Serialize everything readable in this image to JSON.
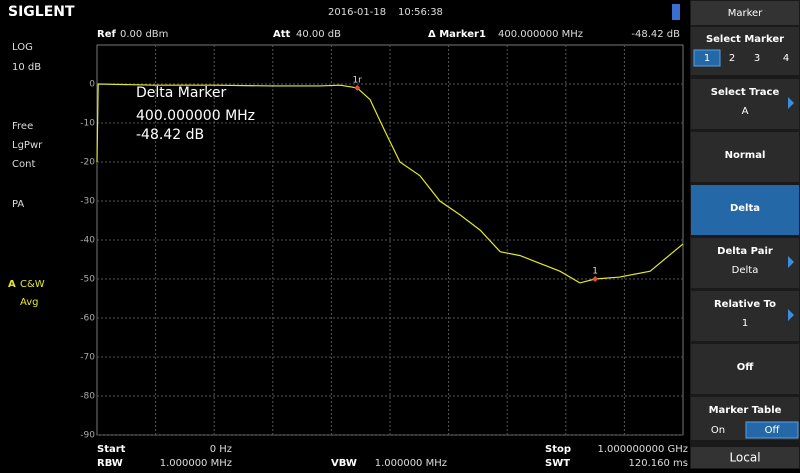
{
  "header": {
    "brand": "SIGLENT",
    "date": "2016-01-18",
    "time": "10:56:38"
  },
  "info_top": {
    "ref_label": "Ref",
    "ref_value": "0.00 dBm",
    "att_label": "Att",
    "att_value": "40.00 dB",
    "marker_label": "Δ Marker1",
    "marker_freq": "400.000000 MHz",
    "marker_level": "-48.42 dB"
  },
  "left_panel": {
    "scale_type": "LOG",
    "scale_div": "10 dB",
    "trig": "Free",
    "detector": "LgPwr",
    "sweep": "Cont",
    "preamp": "PA",
    "trace_id": "A",
    "trace_mode": "C&W",
    "trace_avg": "Avg"
  },
  "overlay": {
    "title": "Delta Marker",
    "freq": "400.000000 MHz",
    "level": "-48.42 dB"
  },
  "info_bottom": {
    "start_label": "Start",
    "start_value": "0 Hz",
    "rbw_label": "RBW",
    "rbw_value": "1.000000 MHz",
    "vbw_label": "VBW",
    "vbw_value": "1.000000 MHz",
    "stop_label": "Stop",
    "stop_value": "1.000000000 GHz",
    "swt_label": "SWT",
    "swt_value": "120.160 ms"
  },
  "menu": {
    "title": "Marker",
    "select_marker": "Select Marker",
    "marker_tabs": [
      "1",
      "2",
      "3",
      "4"
    ],
    "select_trace": "Select Trace",
    "select_trace_value": "A",
    "normal": "Normal",
    "delta": "Delta",
    "delta_pair": "Delta Pair",
    "delta_pair_value": "Delta",
    "relative_to": "Relative To",
    "relative_to_value": "1",
    "off": "Off",
    "marker_table": "Marker Table",
    "table_on": "On",
    "table_off": "Off",
    "local": "Local"
  },
  "chart_data": {
    "type": "line",
    "x": [
      0,
      2,
      100,
      200,
      300,
      380,
      415,
      444,
      466,
      491,
      517,
      551,
      585,
      619,
      654,
      688,
      722,
      756,
      790,
      824,
      850,
      892,
      944,
      1000
    ],
    "series": [
      {
        "color": "#e6e62e",
        "values": [
          -20,
          0,
          -0.3,
          -0.3,
          -0.5,
          -0.5,
          -0.3,
          -1,
          -4,
          -12,
          -20,
          -23.5,
          -30,
          -33.5,
          -37.5,
          -43,
          -44,
          -46,
          -48,
          -51,
          -50,
          -49.5,
          -48,
          -41
        ]
      }
    ],
    "xlim": [
      0,
      1000
    ],
    "ylim": [
      -90,
      10
    ],
    "yticks": [
      0,
      -10,
      -20,
      -30,
      -40,
      -50,
      -60,
      -70,
      -80,
      -90
    ],
    "markers": [
      {
        "label": "1r",
        "x": 444,
        "y": -1
      },
      {
        "label": "1",
        "x": 850,
        "y": -50
      }
    ]
  }
}
